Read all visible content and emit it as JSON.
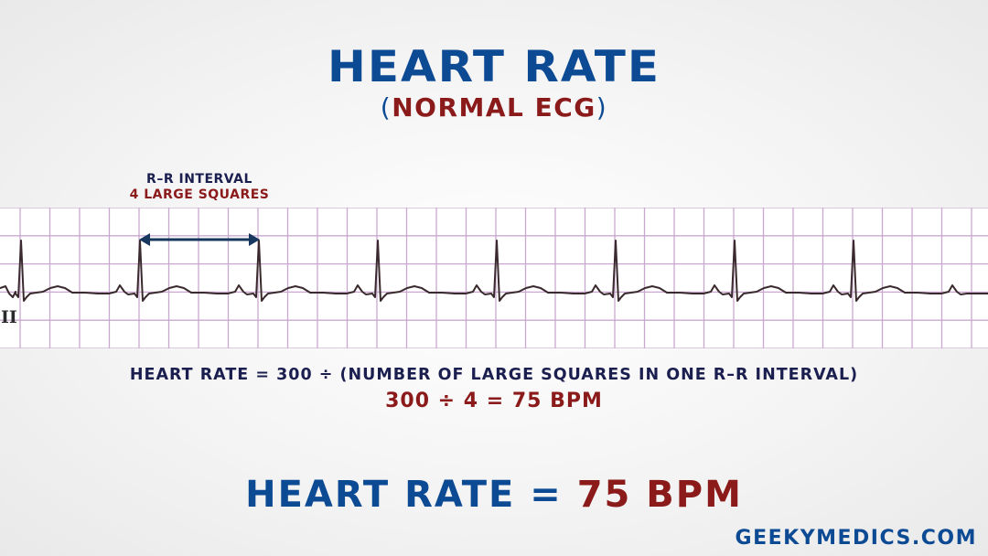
{
  "title": "HEART RATE",
  "subtitle": {
    "open_paren": "(",
    "text": "NORMAL ECG",
    "close_paren": ")"
  },
  "rr_annotation": {
    "line1": "R–R INTERVAL",
    "line2": "4 LARGE SQUARES"
  },
  "ecg": {
    "lead": "II",
    "rr_interval_large_squares": 4,
    "beats_shown": 8,
    "colors": {
      "grid": "#c9a8cf",
      "trace": "#3a2a2e",
      "arrow": "#17375e"
    }
  },
  "formula": "HEART RATE = 300 ÷ (NUMBER OF LARGE SQUARES IN ONE R–R INTERVAL)",
  "calculation": "300 ÷ 4 = 75 BPM",
  "result": {
    "label": "HEART RATE = ",
    "value": "75 BPM"
  },
  "watermark": "GEEKYMEDICS.COM",
  "colors": {
    "primary_blue": "#0d4a94",
    "dark_red": "#8b1a1a",
    "navy": "#1b1f4f"
  }
}
